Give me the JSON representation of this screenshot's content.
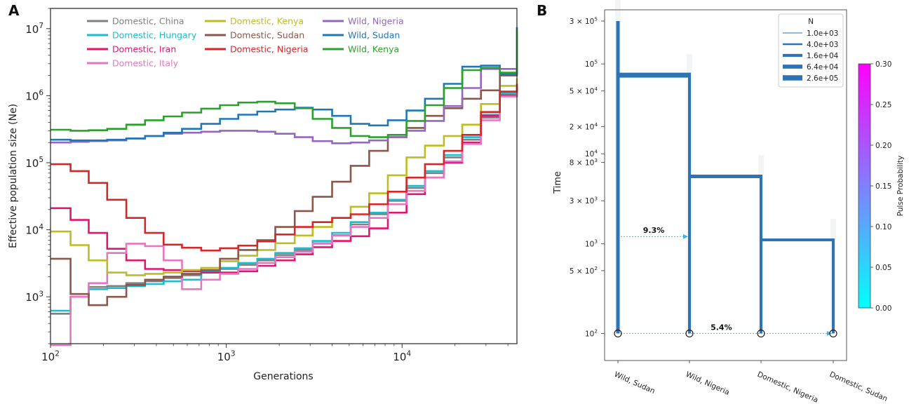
{
  "panel_a": {
    "letter": "A",
    "xlabel": "Generations",
    "ylabel": "Effective population size (Ne)",
    "x_ticks": [
      {
        "value": 100,
        "base": "10",
        "exp": "2"
      },
      {
        "value": 1000,
        "base": "10",
        "exp": "3"
      },
      {
        "value": 10000,
        "base": "10",
        "exp": "4"
      }
    ],
    "y_ticks": [
      {
        "value": 1000,
        "base": "10",
        "exp": "3"
      },
      {
        "value": 10000,
        "base": "10",
        "exp": "4"
      },
      {
        "value": 100000,
        "base": "10",
        "exp": "5"
      },
      {
        "value": 1000000,
        "base": "10",
        "exp": "6"
      },
      {
        "value": 10000000,
        "base": "10",
        "exp": "7"
      }
    ]
  },
  "panel_b": {
    "letter": "B",
    "ylabel": "Time",
    "y_ticks": [
      {
        "value": 300000,
        "base": "3 × 10",
        "exp": "5"
      },
      {
        "value": 100000,
        "base": "10",
        "exp": "5"
      },
      {
        "value": 50000,
        "base": "5 × 10",
        "exp": "4"
      },
      {
        "value": 20000,
        "base": "2 × 10",
        "exp": "4"
      },
      {
        "value": 10000,
        "base": "10",
        "exp": "4"
      },
      {
        "value": 8000,
        "base": "8 × 10",
        "exp": "3"
      },
      {
        "value": 3000,
        "base": "3 × 10",
        "exp": "3"
      },
      {
        "value": 1000,
        "base": "10",
        "exp": "3"
      },
      {
        "value": 500,
        "base": "5 × 10",
        "exp": "2"
      },
      {
        "value": 100,
        "base": "10",
        "exp": "2"
      }
    ],
    "legend_title": "N",
    "legend_entries": [
      {
        "label": "1.0e+03",
        "n": 1000
      },
      {
        "label": "4.0e+03",
        "n": 4000
      },
      {
        "label": "1.6e+04",
        "n": 16000
      },
      {
        "label": "6.4e+04",
        "n": 64000
      },
      {
        "label": "2.6e+05",
        "n": 260000
      }
    ],
    "colorbar_label": "Pulse Probability",
    "colorbar_ticks": [
      "0.00",
      "0.05",
      "0.10",
      "0.15",
      "0.20",
      "0.25",
      "0.30"
    ],
    "colorbar_colors": [
      "#00ffff",
      "#ff00ff"
    ]
  },
  "chart_data": [
    {
      "type": "line",
      "panel": "A",
      "xlabel": "Generations",
      "ylabel": "Effective population size (Ne)",
      "xscale": "log",
      "yscale": "log",
      "xlim": [
        100,
        45000
      ],
      "ylim": [
        200,
        20000000
      ],
      "legend_placement": "top",
      "series": [
        {
          "name": "Domestic, China",
          "color": "#808080",
          "x": [
            100,
            130,
            165,
            210,
            270,
            345,
            440,
            560,
            720,
            920,
            1170,
            1500,
            1900,
            2450,
            3100,
            4000,
            5100,
            6500,
            8300,
            10600,
            13500,
            17300,
            22000,
            28100,
            36000,
            45000
          ],
          "values": [
            560,
            1000,
            1400,
            1450,
            1600,
            1700,
            1900,
            2100,
            2300,
            2600,
            3000,
            3500,
            4200,
            5000,
            6300,
            8300,
            12000,
            17000,
            27000,
            42000,
            70000,
            120000,
            220000,
            470000,
            1050000,
            1300000
          ]
        },
        {
          "name": "Domestic, Hungary",
          "color": "#17becf",
          "x": [
            100,
            130,
            165,
            210,
            270,
            345,
            440,
            560,
            720,
            920,
            1170,
            1500,
            1900,
            2450,
            3100,
            4000,
            5100,
            6500,
            8300,
            10600,
            13500,
            17300,
            22000,
            28100,
            36000,
            45000
          ],
          "values": [
            620,
            1000,
            1300,
            1350,
            1450,
            1550,
            1700,
            1800,
            2400,
            2700,
            3200,
            3700,
            4500,
            5300,
            6800,
            9000,
            13000,
            18000,
            28000,
            45000,
            75000,
            130000,
            240000,
            520000,
            1100000,
            1400000
          ]
        },
        {
          "name": "Domestic, Iran",
          "color": "#e0156e",
          "x": [
            100,
            130,
            165,
            210,
            270,
            345,
            440,
            560,
            720,
            920,
            1170,
            1500,
            1900,
            2450,
            3100,
            4000,
            5100,
            6500,
            8300,
            10600,
            13500,
            17300,
            22000,
            28100,
            36000,
            45000
          ],
          "values": [
            21000,
            14000,
            9000,
            5200,
            3500,
            2600,
            2500,
            2400,
            2300,
            2300,
            2400,
            2900,
            3500,
            4300,
            5500,
            6800,
            8000,
            10500,
            18000,
            34000,
            60000,
            100000,
            200000,
            500000,
            1000000,
            1350000
          ]
        },
        {
          "name": "Domestic, Italy",
          "color": "#e377c2",
          "x": [
            100,
            130,
            165,
            210,
            270,
            345,
            440,
            560,
            720,
            920,
            1170,
            1500,
            1900,
            2450,
            3100,
            4000,
            5100,
            6500,
            8300,
            10600,
            13500,
            17300,
            22000,
            28100,
            36000,
            45000
          ],
          "values": [
            190,
            1000,
            1600,
            4500,
            6200,
            5700,
            3500,
            1300,
            1800,
            2200,
            2600,
            3200,
            3900,
            4700,
            6200,
            8200,
            11000,
            15000,
            24000,
            38000,
            60000,
            105000,
            190000,
            430000,
            970000,
            1250000
          ]
        },
        {
          "name": "Domestic, Kenya",
          "color": "#bcbd22",
          "x": [
            100,
            130,
            165,
            210,
            270,
            345,
            440,
            560,
            720,
            920,
            1170,
            1500,
            1900,
            2450,
            3100,
            4000,
            5100,
            6500,
            8300,
            10600,
            13500,
            17300,
            22000,
            28100,
            36000,
            45000
          ],
          "values": [
            9400,
            5900,
            3500,
            2300,
            2100,
            2200,
            2300,
            2500,
            2700,
            3400,
            4100,
            5000,
            6300,
            8200,
            11000,
            15000,
            22000,
            35000,
            65000,
            120000,
            180000,
            250000,
            370000,
            750000,
            1400000,
            1800000
          ]
        },
        {
          "name": "Domestic, Sudan",
          "color": "#8c564b",
          "x": [
            100,
            130,
            165,
            210,
            270,
            345,
            440,
            560,
            720,
            920,
            1170,
            1500,
            1900,
            2450,
            3100,
            4000,
            5100,
            6500,
            8300,
            10600,
            13500,
            17300,
            22000,
            28100,
            36000,
            45000
          ],
          "values": [
            3700,
            1100,
            750,
            1000,
            1500,
            1800,
            2000,
            2200,
            2500,
            3700,
            5000,
            7000,
            11000,
            19000,
            31000,
            52000,
            90000,
            150000,
            240000,
            330000,
            500000,
            650000,
            900000,
            1200000,
            2000000,
            2500000
          ]
        },
        {
          "name": "Domestic, Nigeria",
          "color": "#d62728",
          "x": [
            100,
            130,
            165,
            210,
            270,
            345,
            440,
            560,
            720,
            920,
            1170,
            1500,
            1900,
            2450,
            3100,
            4000,
            5100,
            6500,
            8300,
            10600,
            13500,
            17300,
            22000,
            28100,
            36000,
            45000
          ],
          "values": [
            95000,
            75000,
            50000,
            28000,
            15000,
            9000,
            6000,
            5400,
            4900,
            5300,
            5800,
            6700,
            8500,
            11000,
            13000,
            15000,
            17000,
            24000,
            37000,
            60000,
            95000,
            150000,
            260000,
            570000,
            1150000,
            1500000
          ]
        },
        {
          "name": "Wild, Nigeria",
          "color": "#9467bd",
          "x": [
            100,
            130,
            165,
            210,
            270,
            345,
            440,
            560,
            720,
            920,
            1170,
            1500,
            1900,
            2450,
            3100,
            4000,
            5100,
            6500,
            8300,
            10600,
            13500,
            17300,
            22000,
            28100,
            36000,
            45000
          ],
          "values": [
            200000,
            205000,
            210000,
            215000,
            230000,
            250000,
            270000,
            280000,
            290000,
            300000,
            300000,
            290000,
            270000,
            240000,
            210000,
            195000,
            200000,
            215000,
            240000,
            300000,
            420000,
            700000,
            1300000,
            2500000,
            2500000,
            2300000
          ]
        },
        {
          "name": "Wild, Sudan",
          "color": "#1f77b4",
          "x": [
            100,
            130,
            165,
            210,
            270,
            345,
            440,
            560,
            720,
            920,
            1170,
            1500,
            1900,
            2450,
            3100,
            4000,
            5100,
            6500,
            8300,
            10600,
            13500,
            17300,
            22000,
            28100,
            36000,
            45000
          ],
          "values": [
            220000,
            215000,
            215000,
            220000,
            230000,
            250000,
            280000,
            320000,
            380000,
            450000,
            520000,
            580000,
            620000,
            660000,
            620000,
            500000,
            380000,
            360000,
            430000,
            600000,
            900000,
            1500000,
            2700000,
            2800000,
            2100000,
            10500000
          ]
        },
        {
          "name": "Wild, Kenya",
          "color": "#2ca02c",
          "x": [
            100,
            130,
            165,
            210,
            270,
            345,
            440,
            560,
            720,
            920,
            1170,
            1500,
            1900,
            2450,
            3100,
            4000,
            5100,
            6500,
            8300,
            10600,
            13500,
            17300,
            22000,
            28100,
            36000,
            45000
          ],
          "values": [
            310000,
            300000,
            305000,
            320000,
            370000,
            430000,
            490000,
            560000,
            640000,
            720000,
            790000,
            810000,
            770000,
            650000,
            450000,
            330000,
            250000,
            240000,
            260000,
            420000,
            720000,
            1300000,
            2400000,
            2600000,
            2200000,
            9800000
          ]
        }
      ]
    },
    {
      "type": "demographic_tree",
      "panel": "B",
      "ylabel": "Time",
      "yscale": "log",
      "ylim": [
        50,
        400000
      ],
      "categories": [
        "Wild, Sudan",
        "Wild, Nigeria",
        "Domestic, Nigeria",
        "Domestic, Sudan"
      ],
      "lineages": [
        {
          "name": "Wild, Sudan",
          "start_time": 100,
          "end_time": 300000
        },
        {
          "name": "Wild, Nigeria",
          "start_time": 100,
          "end_time": 75000
        },
        {
          "name": "Domestic, Nigeria",
          "start_time": 100,
          "end_time": 5600
        },
        {
          "name": "Domestic, Sudan",
          "start_time": 100,
          "end_time": 1100
        }
      ],
      "splits": [
        {
          "time": 75000,
          "from": "Wild, Sudan",
          "to": "Wild, Nigeria"
        },
        {
          "time": 5600,
          "from": "Wild, Nigeria",
          "to": "Domestic, Nigeria"
        },
        {
          "time": 1100,
          "from": "Domestic, Nigeria",
          "to": "Domestic, Sudan"
        }
      ],
      "pulses": [
        {
          "from": "Wild, Sudan",
          "to": "Wild, Nigeria",
          "time": 1200,
          "label": "9.3%",
          "proportion": 0.093
        },
        {
          "from": "Wild, Sudan",
          "to": "Domestic, Sudan",
          "time": 100,
          "label": "5.4%",
          "proportion": 0.054
        }
      ]
    }
  ]
}
